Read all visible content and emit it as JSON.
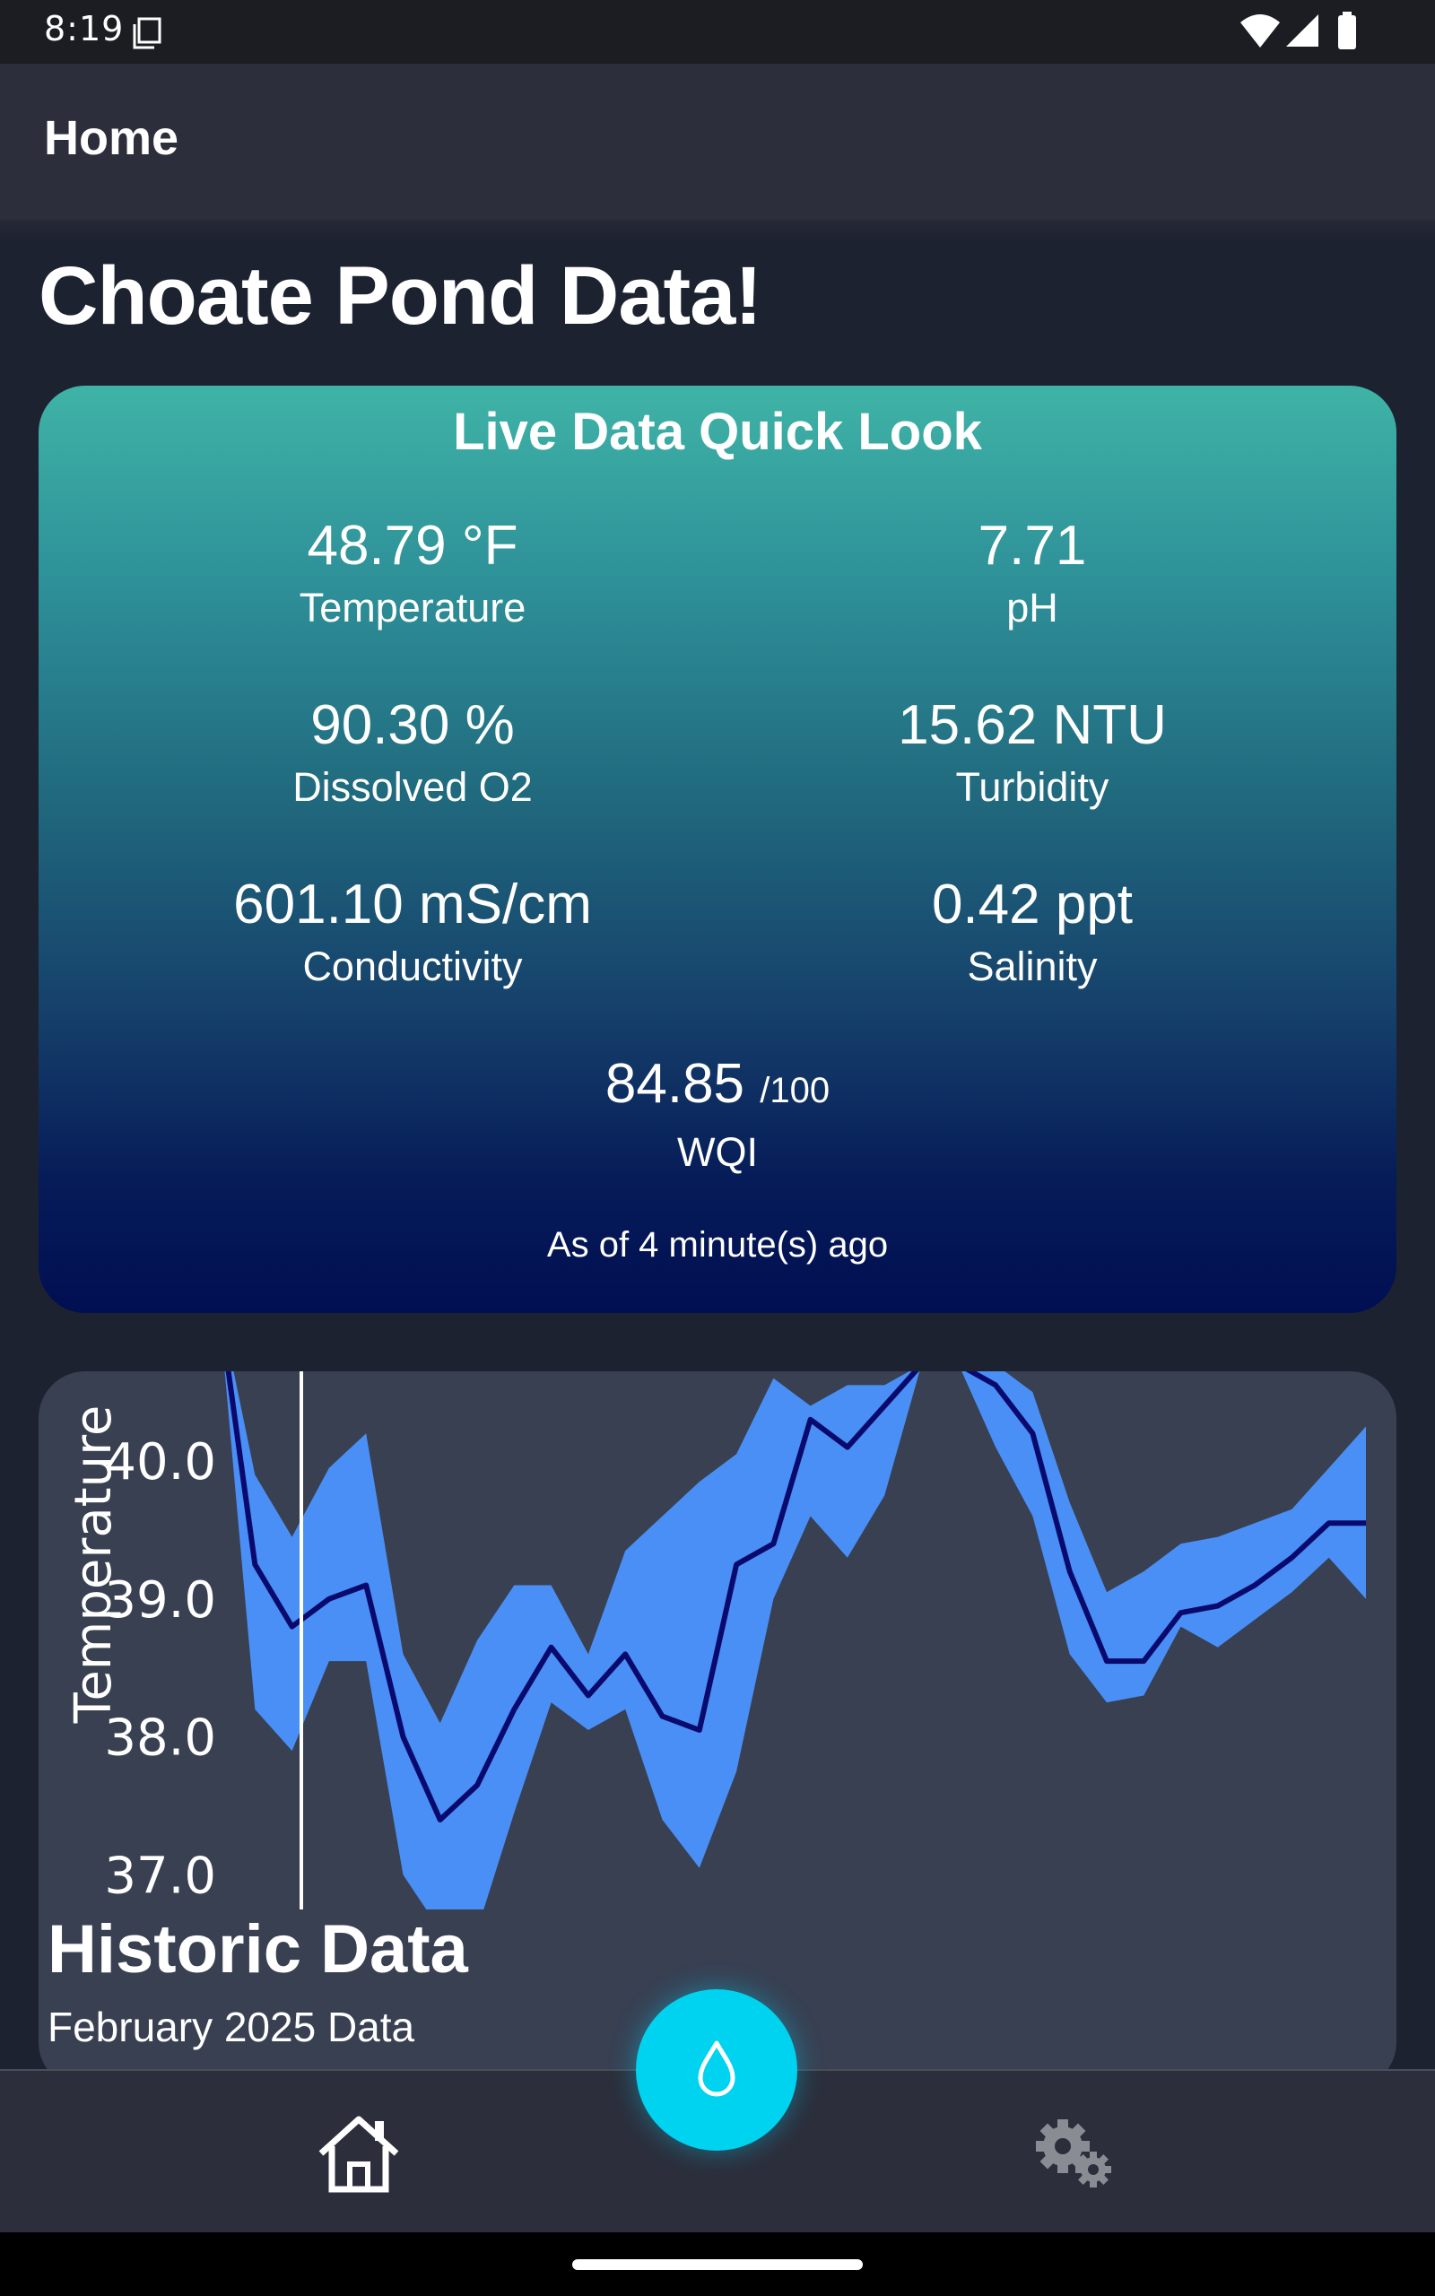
{
  "status_bar": {
    "time": "8:19",
    "icons": [
      "sim-card-icon",
      "wifi-icon",
      "signal-icon",
      "battery-icon"
    ]
  },
  "app_bar": {
    "title": "Home"
  },
  "page": {
    "title": "Choate Pond Data!"
  },
  "live_card": {
    "title": "Live Data Quick Look",
    "metrics": [
      {
        "value": "48.79 °F",
        "label": "Temperature"
      },
      {
        "value": "7.71",
        "label": "pH"
      },
      {
        "value": "90.30 %",
        "label": "Dissolved O2"
      },
      {
        "value": "15.62 NTU",
        "label": "Turbidity"
      },
      {
        "value": "601.10 mS/cm",
        "label": "Conductivity"
      },
      {
        "value": "0.42 ppt",
        "label": "Salinity"
      }
    ],
    "wqi": {
      "value": "84.85",
      "suffix": "/100",
      "label": "WQI"
    },
    "updated": "As of 4 minute(s) ago",
    "gradient": [
      "#3fb3a6",
      "#000f52"
    ]
  },
  "historic_card": {
    "title": "Historic Data",
    "subtitle": "February 2025 Data"
  },
  "chart_data": {
    "type": "line",
    "ylabel": "Temperature",
    "y_ticks": [
      "40.0",
      "39.0",
      "38.0",
      "37.0"
    ],
    "ylim": [
      36.75,
      40.65
    ],
    "grid": false,
    "series": [
      {
        "values": [
          41.2,
          39.25,
          38.8,
          39.0,
          39.1,
          38.0,
          37.4,
          37.65,
          38.2,
          38.65,
          38.3,
          38.6,
          38.15,
          38.05,
          39.25,
          39.4,
          40.3,
          40.1,
          40.4,
          40.7,
          40.7,
          40.55,
          40.2,
          39.2,
          38.55,
          38.55,
          38.9,
          38.95,
          39.1,
          39.3,
          39.55,
          39.55
        ]
      }
    ],
    "band_upper": [
      41.2,
      39.9,
      39.45,
      39.95,
      40.2,
      38.6,
      38.1,
      38.7,
      39.1,
      39.1,
      38.6,
      39.35,
      39.6,
      39.85,
      40.05,
      40.6,
      40.4,
      40.55,
      40.55,
      40.7,
      40.7,
      40.7,
      40.5,
      39.7,
      39.05,
      39.2,
      39.4,
      39.45,
      39.55,
      39.65,
      39.95,
      40.25
    ],
    "band_lower": [
      41.2,
      38.2,
      37.9,
      38.55,
      38.55,
      37.0,
      36.6,
      36.6,
      37.45,
      38.25,
      38.05,
      38.2,
      37.4,
      37.05,
      37.75,
      39.0,
      39.6,
      39.3,
      39.75,
      40.7,
      40.7,
      40.1,
      39.6,
      38.6,
      38.25,
      38.3,
      38.8,
      38.65,
      38.85,
      39.05,
      39.3,
      39.0
    ],
    "colors": {
      "line": "#0a0a6e",
      "band": "#4a8ff5",
      "axis": "#ffffff"
    }
  },
  "bottom_nav": {
    "items": [
      "home-icon",
      "settings-icon"
    ],
    "fab_icon": "water-drop-icon",
    "fab_color": "#00d3f0"
  }
}
